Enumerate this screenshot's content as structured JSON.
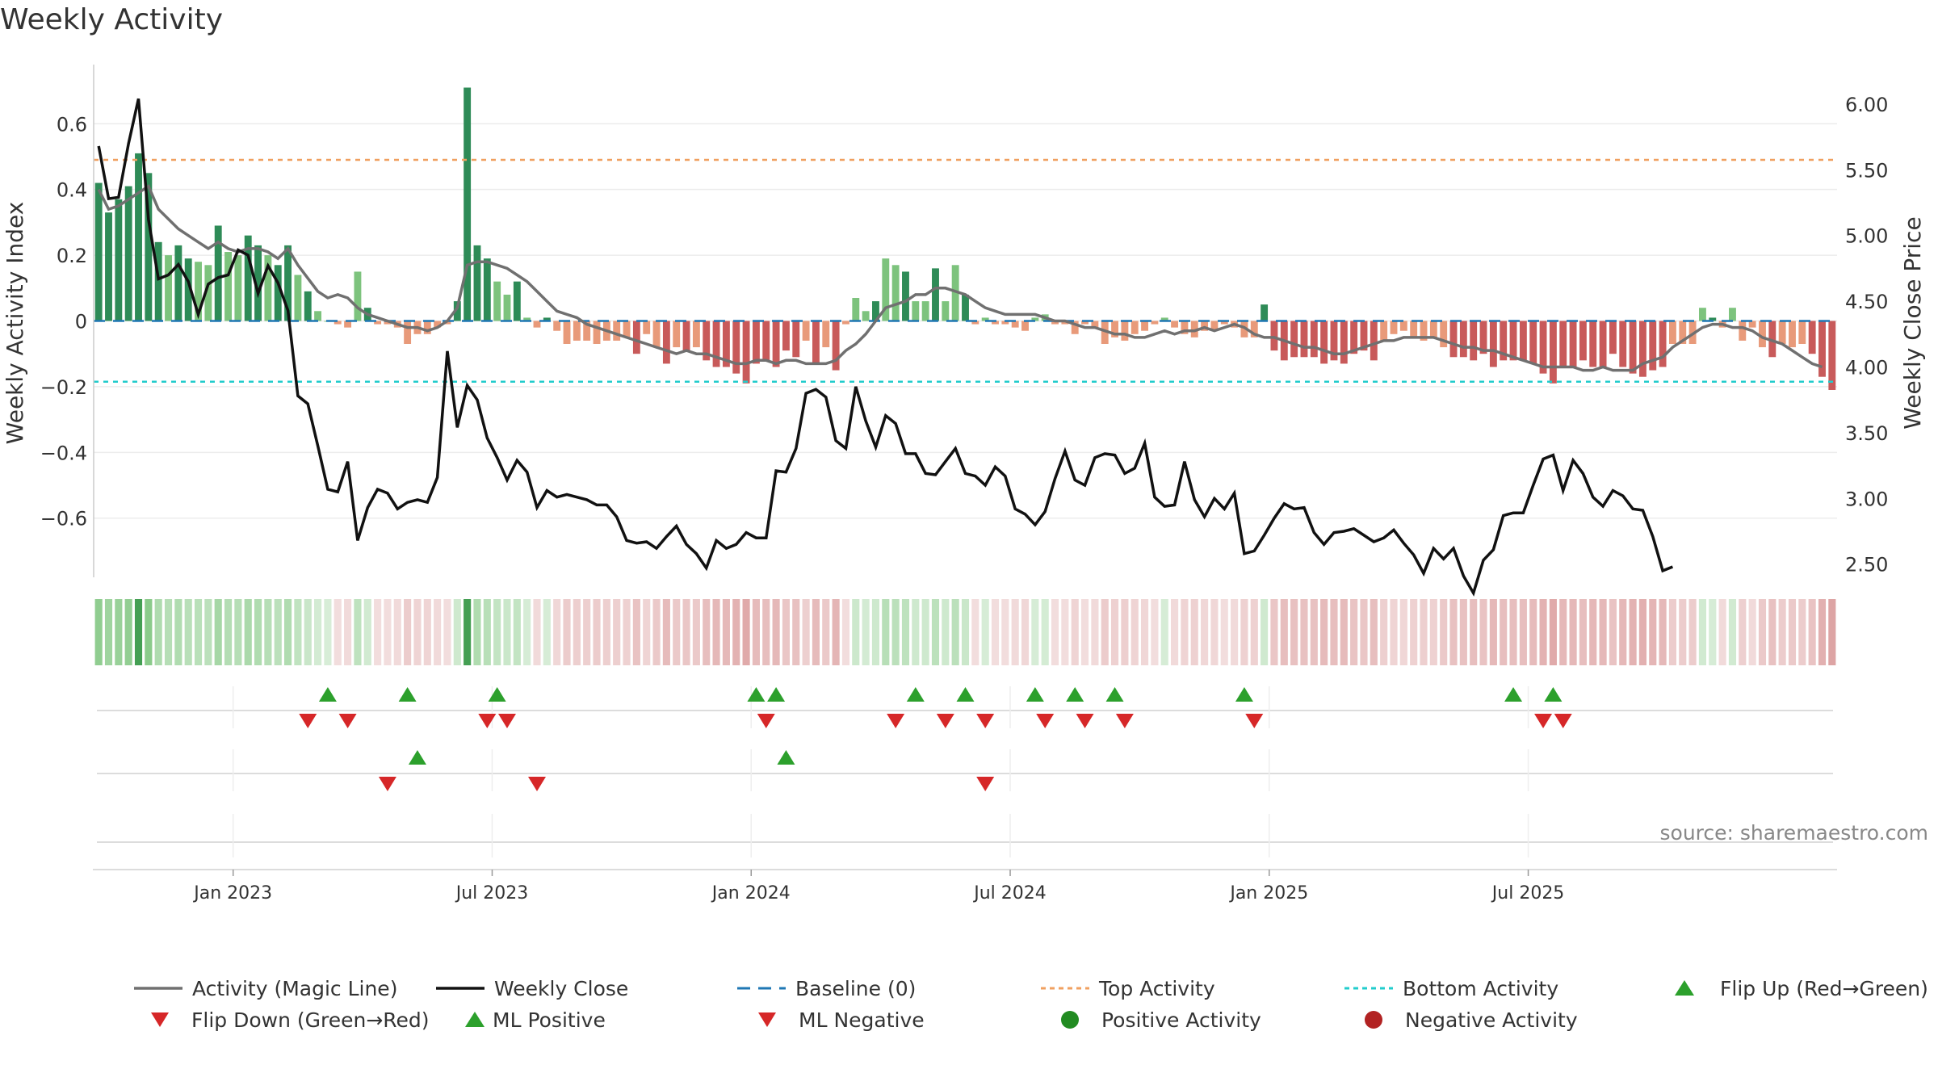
{
  "chart_data": {
    "type": "bar+line",
    "title": "Weekly Activity",
    "ylabel_left": "Weekly Activity Index",
    "ylabel_right": "Weekly Close Price",
    "ylim_left": [
      -0.78,
      0.78
    ],
    "ylim_right": [
      2.4,
      6.3
    ],
    "yticks_left": [
      -0.6,
      -0.4,
      -0.2,
      0,
      0.2,
      0.4,
      0.6
    ],
    "yticks_left_labels": [
      "−0.6",
      "−0.4",
      "−0.2",
      "0",
      "0.2",
      "0.4",
      "0.6"
    ],
    "yticks_right": [
      2.5,
      3.0,
      3.5,
      4.0,
      4.5,
      5.0,
      5.5,
      6.0
    ],
    "yticks_right_labels": [
      "2.50",
      "3.00",
      "3.50",
      "4.00",
      "4.50",
      "5.00",
      "5.50",
      "6.00"
    ],
    "xticks": [
      {
        "label": "Jan 2023",
        "week": 13.5
      },
      {
        "label": "Jul 2023",
        "week": 39.5
      },
      {
        "label": "Jan 2024",
        "week": 65.5
      },
      {
        "label": "Jul 2024",
        "week": 91.5
      },
      {
        "label": "Jan 2025",
        "week": 117.5
      },
      {
        "label": "Jul 2025",
        "week": 143.5
      }
    ],
    "top_activity": 0.49,
    "bottom_activity": -0.185,
    "activity": [
      0.42,
      0.33,
      0.37,
      0.41,
      0.51,
      0.45,
      0.24,
      0.2,
      0.23,
      0.19,
      0.18,
      0.17,
      0.29,
      0.21,
      0.2,
      0.26,
      0.23,
      0.2,
      0.17,
      0.23,
      0.14,
      0.09,
      0.03,
      0,
      -0.01,
      -0.02,
      0.15,
      0.04,
      -0.01,
      -0.01,
      -0.02,
      -0.07,
      -0.04,
      -0.04,
      -0.02,
      -0.01,
      0.06,
      0.71,
      0.23,
      0.19,
      0.12,
      0.08,
      0.12,
      0.01,
      -0.02,
      0.01,
      -0.03,
      -0.07,
      -0.06,
      -0.06,
      -0.07,
      -0.06,
      -0.06,
      -0.05,
      -0.1,
      -0.04,
      -0.08,
      -0.13,
      -0.08,
      -0.09,
      -0.08,
      -0.12,
      -0.14,
      -0.14,
      -0.16,
      -0.19,
      -0.13,
      -0.12,
      -0.14,
      -0.09,
      -0.11,
      -0.06,
      -0.13,
      -0.08,
      -0.15,
      -0.01,
      0.07,
      0.03,
      0.06,
      0.19,
      0.17,
      0.15,
      0.06,
      0.06,
      0.16,
      0.06,
      0.17,
      0.08,
      -0.01,
      0.01,
      -0.01,
      -0.01,
      -0.02,
      -0.03,
      0.01,
      0.02,
      -0.01,
      -0.01,
      -0.04,
      -0.01,
      -0.02,
      -0.07,
      -0.05,
      -0.06,
      -0.04,
      -0.03,
      -0.01,
      0.01,
      -0.02,
      -0.04,
      -0.05,
      -0.03,
      -0.03,
      -0.01,
      -0.02,
      -0.05,
      -0.05,
      0.05,
      -0.09,
      -0.12,
      -0.11,
      -0.11,
      -0.11,
      -0.13,
      -0.12,
      -0.13,
      -0.1,
      -0.09,
      -0.12,
      -0.06,
      -0.04,
      -0.03,
      -0.05,
      -0.06,
      -0.05,
      -0.08,
      -0.11,
      -0.11,
      -0.12,
      -0.1,
      -0.14,
      -0.12,
      -0.12,
      -0.12,
      -0.13,
      -0.16,
      -0.19,
      -0.14,
      -0.14,
      -0.12,
      -0.14,
      -0.14,
      -0.1,
      -0.14,
      -0.16,
      -0.17,
      -0.15,
      -0.14,
      -0.07,
      -0.07,
      -0.07,
      0.04,
      0.01,
      -0.02,
      0.04,
      -0.06,
      -0.02,
      -0.08,
      -0.11,
      -0.07,
      -0.08,
      -0.07,
      -0.1,
      -0.17,
      -0.21
    ],
    "magic_line": [
      0.4,
      0.34,
      0.35,
      0.37,
      0.39,
      0.41,
      0.34,
      0.31,
      0.28,
      0.26,
      0.24,
      0.22,
      0.24,
      0.22,
      0.21,
      0.22,
      0.22,
      0.21,
      0.19,
      0.22,
      0.17,
      0.13,
      0.09,
      0.07,
      0.08,
      0.07,
      0.04,
      0.02,
      0.01,
      0.0,
      -0.01,
      -0.02,
      -0.02,
      -0.03,
      -0.02,
      0.0,
      0.04,
      0.17,
      0.18,
      0.18,
      0.17,
      0.16,
      0.14,
      0.12,
      0.09,
      0.06,
      0.03,
      0.02,
      0.01,
      -0.01,
      -0.02,
      -0.03,
      -0.04,
      -0.05,
      -0.06,
      -0.07,
      -0.08,
      -0.09,
      -0.1,
      -0.09,
      -0.1,
      -0.1,
      -0.11,
      -0.12,
      -0.13,
      -0.13,
      -0.12,
      -0.12,
      -0.13,
      -0.12,
      -0.12,
      -0.13,
      -0.13,
      -0.13,
      -0.12,
      -0.09,
      -0.07,
      -0.04,
      0.0,
      0.04,
      0.05,
      0.06,
      0.08,
      0.08,
      0.1,
      0.1,
      0.09,
      0.08,
      0.06,
      0.04,
      0.03,
      0.02,
      0.02,
      0.02,
      0.02,
      0.01,
      0.0,
      0.0,
      -0.01,
      -0.02,
      -0.02,
      -0.03,
      -0.04,
      -0.04,
      -0.05,
      -0.05,
      -0.04,
      -0.03,
      -0.04,
      -0.03,
      -0.03,
      -0.02,
      -0.03,
      -0.02,
      -0.01,
      -0.02,
      -0.04,
      -0.05,
      -0.05,
      -0.06,
      -0.07,
      -0.08,
      -0.08,
      -0.09,
      -0.1,
      -0.1,
      -0.09,
      -0.08,
      -0.07,
      -0.06,
      -0.06,
      -0.05,
      -0.05,
      -0.05,
      -0.05,
      -0.06,
      -0.07,
      -0.08,
      -0.08,
      -0.09,
      -0.09,
      -0.1,
      -0.11,
      -0.12,
      -0.13,
      -0.14,
      -0.14,
      -0.14,
      -0.14,
      -0.15,
      -0.15,
      -0.14,
      -0.15,
      -0.15,
      -0.15,
      -0.13,
      -0.12,
      -0.11,
      -0.08,
      -0.06,
      -0.04,
      -0.02,
      -0.01,
      -0.01,
      -0.02,
      -0.02,
      -0.03,
      -0.05,
      -0.06,
      -0.07,
      -0.09,
      -0.11,
      -0.13,
      -0.14
    ],
    "weekly_close": [
      5.68,
      5.28,
      5.29,
      5.7,
      6.04,
      5.12,
      4.67,
      4.7,
      4.78,
      4.65,
      4.4,
      4.63,
      4.68,
      4.7,
      4.89,
      4.85,
      4.56,
      4.77,
      4.64,
      4.43,
      3.78,
      3.72,
      3.4,
      3.07,
      3.05,
      3.28,
      2.68,
      2.93,
      3.07,
      3.04,
      2.92,
      2.97,
      2.99,
      2.97,
      3.16,
      4.12,
      3.54,
      3.86,
      3.75,
      3.46,
      3.31,
      3.14,
      3.29,
      3.2,
      2.93,
      3.06,
      3.01,
      3.03,
      3.01,
      2.99,
      2.95,
      2.95,
      2.86,
      2.68,
      2.66,
      2.67,
      2.62,
      2.71,
      2.79,
      2.65,
      2.58,
      2.47,
      2.68,
      2.62,
      2.65,
      2.74,
      2.7,
      2.7,
      3.21,
      3.2,
      3.38,
      3.8,
      3.83,
      3.77,
      3.44,
      3.38,
      3.85,
      3.59,
      3.39,
      3.63,
      3.57,
      3.34,
      3.34,
      3.19,
      3.18,
      3.28,
      3.38,
      3.19,
      3.17,
      3.1,
      3.24,
      3.17,
      2.92,
      2.88,
      2.8,
      2.9,
      3.15,
      3.36,
      3.14,
      3.1,
      3.31,
      3.34,
      3.33,
      3.19,
      3.23,
      3.42,
      3.01,
      2.94,
      2.95,
      3.28,
      2.99,
      2.86,
      3.0,
      2.92,
      3.04,
      2.58,
      2.6,
      2.72,
      2.85,
      2.96,
      2.92,
      2.93,
      2.74,
      2.65,
      2.74,
      2.75,
      2.77,
      2.72,
      2.67,
      2.7,
      2.76,
      2.66,
      2.57,
      2.43,
      2.62,
      2.54,
      2.62,
      2.41,
      2.28,
      2.53,
      2.61,
      2.87,
      2.89,
      2.89,
      3.1,
      3.3,
      3.33,
      3.06,
      3.29,
      3.19,
      3.01,
      2.94,
      3.06,
      3.02,
      2.92,
      2.91,
      2.71,
      2.45,
      2.48
    ],
    "flip_up": [
      23,
      31,
      40,
      66,
      68,
      82,
      87,
      94,
      98,
      102,
      115,
      142,
      146
    ],
    "flip_down": [
      21,
      25,
      39,
      41,
      67,
      80,
      85,
      89,
      95,
      99,
      103,
      116,
      145,
      147
    ],
    "ml_positive": [
      32,
      69
    ],
    "ml_negative": [
      29,
      44,
      89
    ],
    "source": "source: sharemaestro.com",
    "legend": [
      {
        "label": "Activity (Magic Line)",
        "marker": "solid-gray-line"
      },
      {
        "label": "Weekly Close",
        "marker": "solid-black-line"
      },
      {
        "label": "Baseline (0)",
        "marker": "dashed-blue-line"
      },
      {
        "label": "Top Activity",
        "marker": "dotted-orange-line"
      },
      {
        "label": "Bottom Activity",
        "marker": "dotted-cyan-line"
      },
      {
        "label": "Flip Up (Red→Green)",
        "marker": "green-up-triangle"
      },
      {
        "label": "Flip Down (Green→Red)",
        "marker": "red-down-triangle"
      },
      {
        "label": "ML Positive",
        "marker": "green-up-triangle"
      },
      {
        "label": "ML Negative",
        "marker": "red-down-triangle"
      },
      {
        "label": "Positive Activity",
        "marker": "green-dot"
      },
      {
        "label": "Negative Activity",
        "marker": "red-dot"
      }
    ],
    "colors": {
      "green_dark": "#2e8b57",
      "green_light": "#7dc37d",
      "red_dark": "#c85a5a",
      "red_light": "#e89a7a",
      "magic_line": "#707070",
      "close_line": "#111111",
      "baseline": "#1f77b4",
      "top_line": "#f0a060",
      "bottom_line": "#22cccc",
      "marker_green": "#2ca02c",
      "marker_red": "#d62728",
      "dot_green": "#228b22",
      "dot_red": "#b22222"
    }
  }
}
